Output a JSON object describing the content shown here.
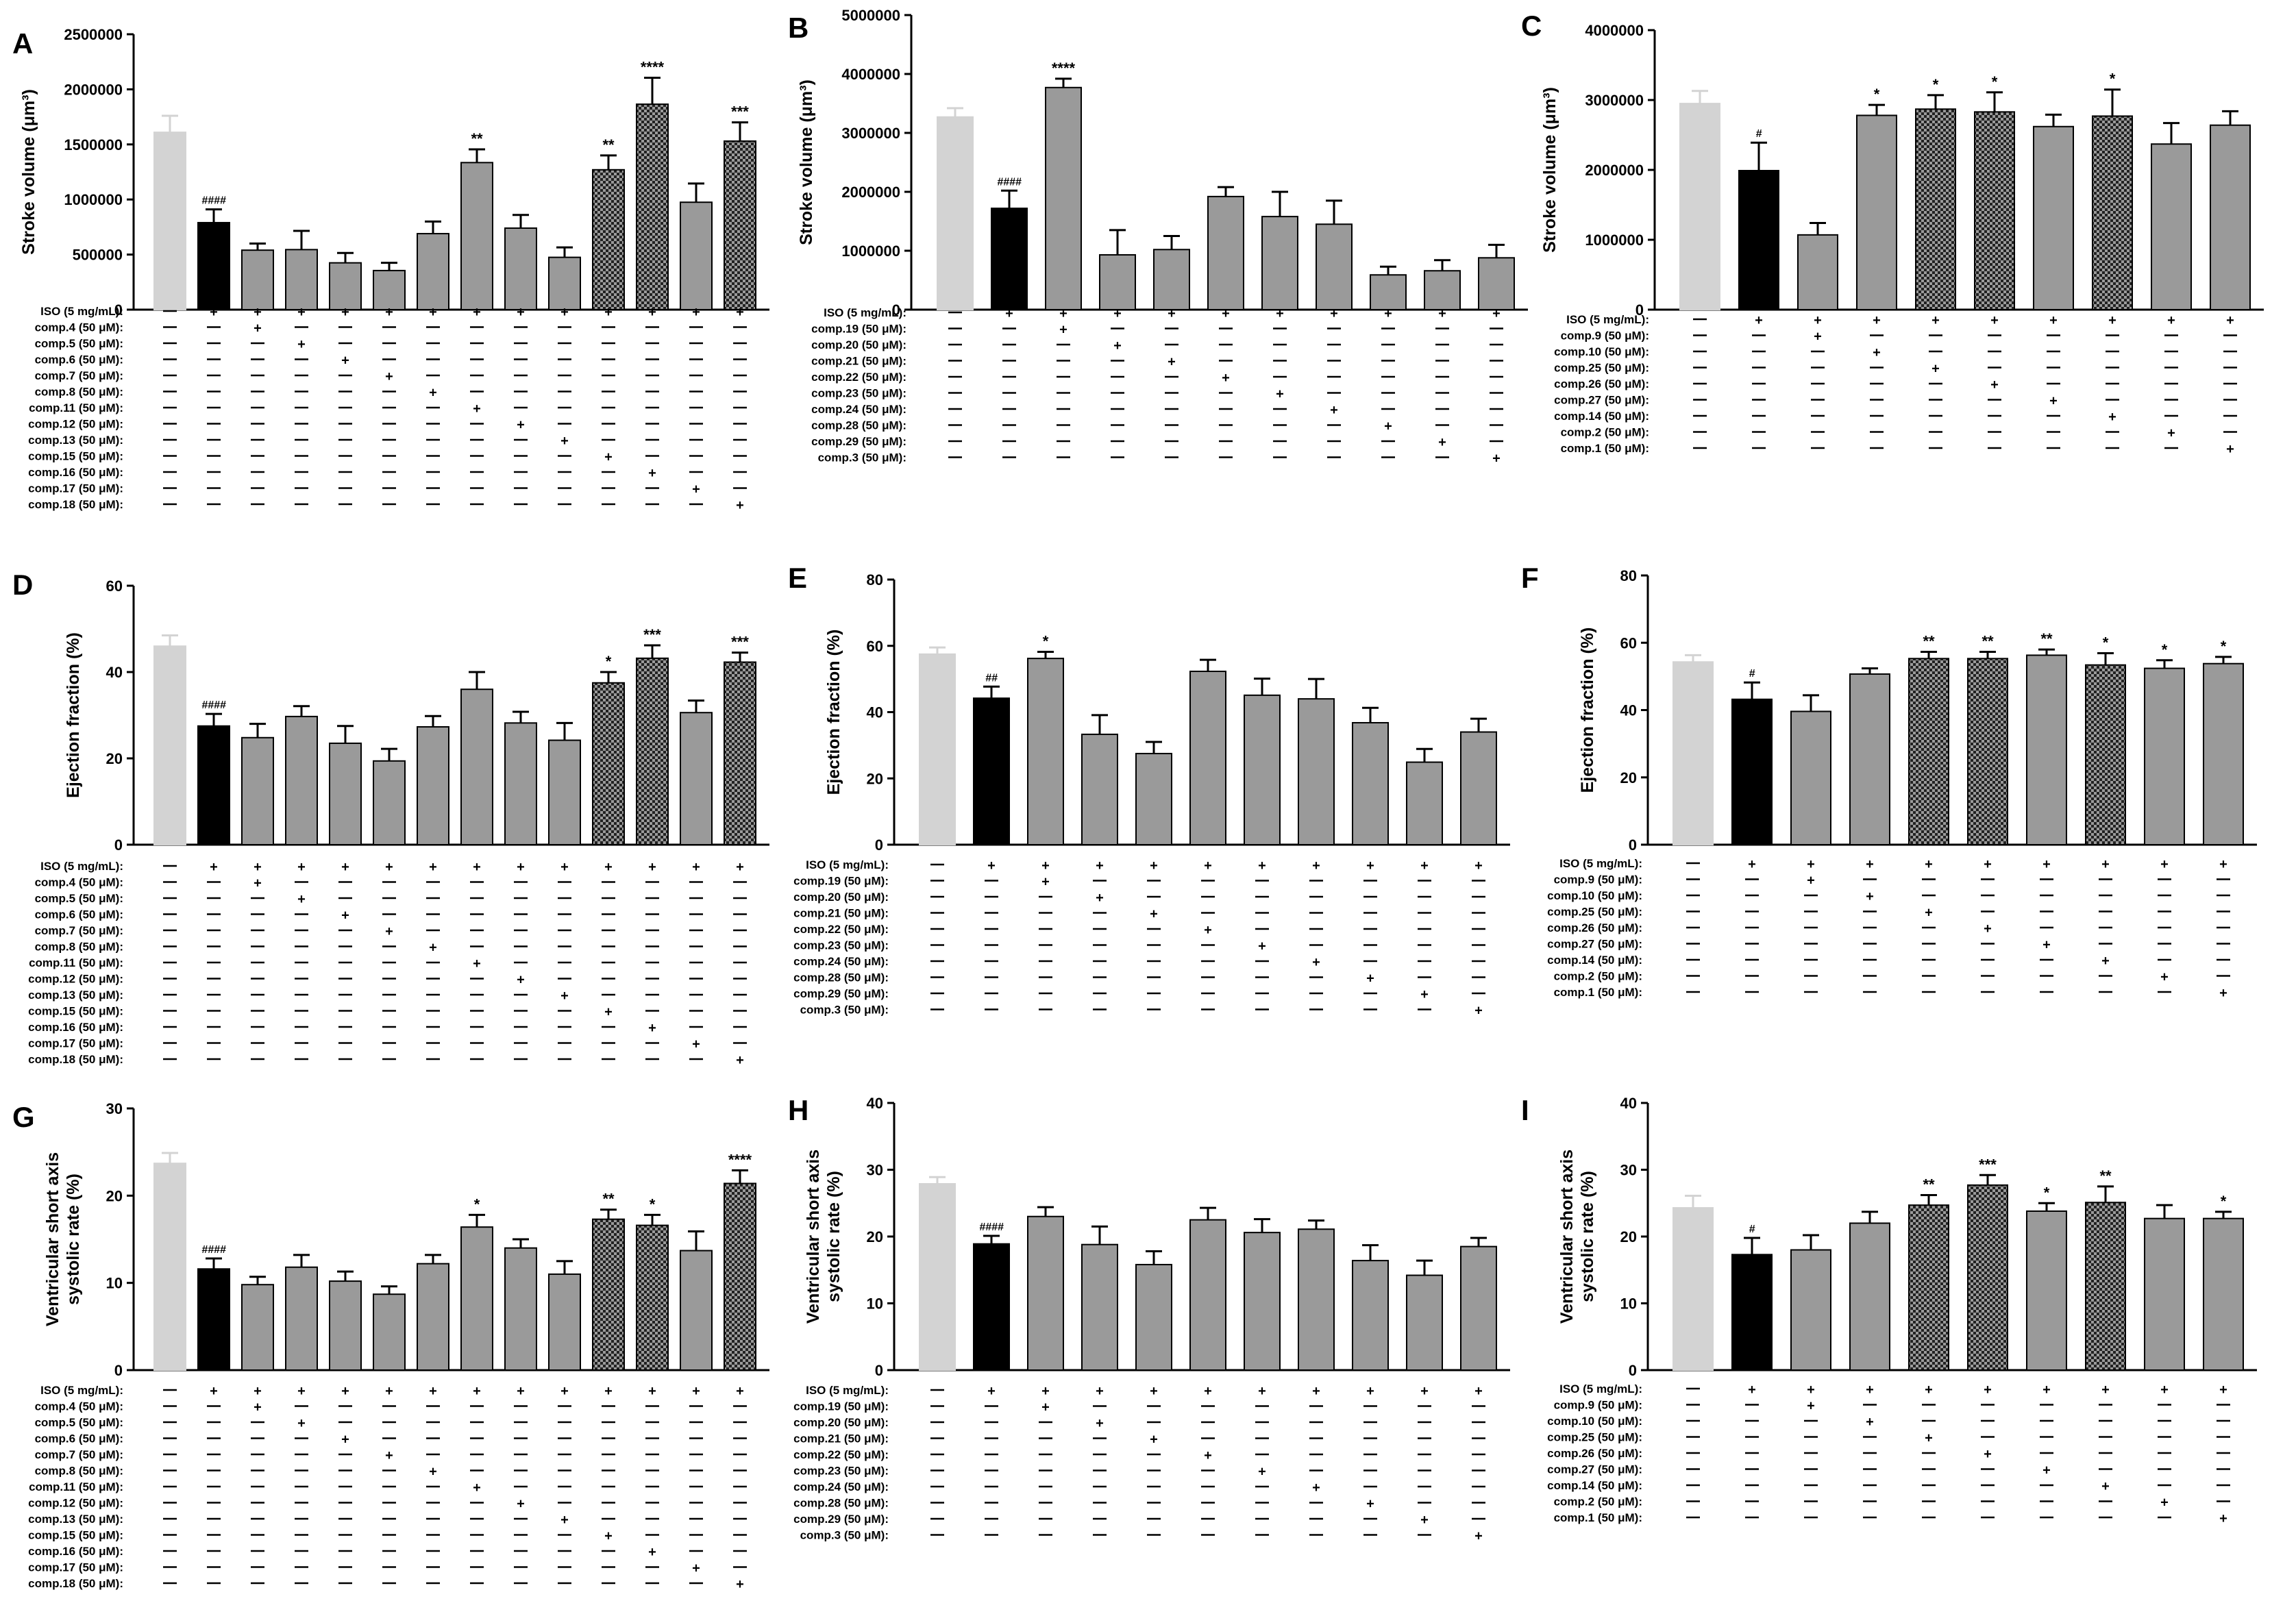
{
  "conditions": {
    "rowA": [
      "ISO (5 mg/mL):",
      "comp.4 (50 μM):",
      "comp.5 (50 μM):",
      "comp.6 (50 μM):",
      "comp.7 (50 μM):",
      "comp.8 (50 μM):",
      "comp.11 (50 μM):",
      "comp.12 (50 μM):",
      "comp.13 (50 μM):",
      "comp.15 (50 μM):",
      "comp.16 (50 μM):",
      "comp.17 (50 μM):",
      "comp.18 (50 μM):"
    ],
    "rowB": [
      "ISO (5 mg/mL):",
      "comp.19 (50 μM):",
      "comp.20 (50 μM):",
      "comp.21 (50 μM):",
      "comp.22 (50 μM):",
      "comp.23 (50 μM):",
      "comp.24 (50 μM):",
      "comp.28 (50 μM):",
      "comp.29 (50 μM):",
      "comp.3 (50 μM):"
    ],
    "rowC": [
      "ISO (5 mg/mL):",
      "comp.9 (50 μM):",
      "comp.10 (50 μM):",
      "comp.25 (50 μM):",
      "comp.26 (50 μM):",
      "comp.27 (50 μM):",
      "comp.14 (50 μM):",
      "comp.2 (50 μM):",
      "comp.1 (50 μM):"
    ]
  },
  "chart_data": [
    {
      "panel": "A",
      "type": "bar",
      "ylabel": "Stroke volume (μm³)",
      "ylim": [
        0,
        2500000
      ],
      "yticks": [
        "0",
        "500000",
        "1000000",
        "1500000",
        "2000000",
        "2500000"
      ],
      "values": [
        1610000,
        790000,
        540000,
        545000,
        425000,
        355000,
        690000,
        1335000,
        740000,
        475000,
        1270000,
        1865000,
        975000,
        1530000
      ],
      "errors": [
        150000,
        120000,
        60000,
        170000,
        90000,
        70000,
        110000,
        120000,
        120000,
        90000,
        130000,
        240000,
        170000,
        170000
      ],
      "sig": [
        "",
        "####",
        "",
        "",
        "",
        "",
        "",
        "**",
        "",
        "",
        "**",
        "****",
        "",
        "***"
      ]
    },
    {
      "panel": "B",
      "type": "bar",
      "ylabel": "Stroke volume (μm³)",
      "ylim": [
        0,
        5000000
      ],
      "yticks": [
        "0",
        "1000000",
        "2000000",
        "3000000",
        "4000000",
        "5000000"
      ],
      "values": [
        3270000,
        1720000,
        3770000,
        930000,
        1020000,
        1920000,
        1580000,
        1450000,
        590000,
        660000,
        880000
      ],
      "errors": [
        150000,
        300000,
        150000,
        420000,
        230000,
        160000,
        420000,
        400000,
        140000,
        180000,
        220000
      ],
      "sig": [
        "",
        "####",
        "****",
        "",
        "",
        "",
        "",
        "",
        "",
        "",
        ""
      ]
    },
    {
      "panel": "C",
      "type": "bar",
      "ylabel": "Stroke volume (μm³)",
      "ylim": [
        0,
        4000000
      ],
      "yticks": [
        "0",
        "1000000",
        "2000000",
        "3000000",
        "4000000"
      ],
      "values": [
        2950000,
        1990000,
        1070000,
        2780000,
        2870000,
        2830000,
        2620000,
        2770000,
        2370000,
        2640000
      ],
      "errors": [
        180000,
        400000,
        170000,
        150000,
        200000,
        280000,
        170000,
        380000,
        300000,
        200000
      ],
      "sig": [
        "",
        "#",
        "",
        "*",
        "*",
        "*",
        "",
        "*",
        "",
        ""
      ]
    },
    {
      "panel": "D",
      "type": "bar",
      "ylabel": "Ejection fraction (%)",
      "ylim": [
        0,
        60
      ],
      "yticks": [
        "0",
        "20",
        "40",
        "60"
      ],
      "values": [
        46,
        27.5,
        24.8,
        29.7,
        23.5,
        19.4,
        27.3,
        36,
        28.2,
        24.2,
        37.5,
        43.2,
        30.6,
        42.3
      ],
      "errors": [
        2.5,
        2.8,
        3.2,
        2.4,
        4.0,
        2.8,
        2.5,
        4.0,
        2.6,
        4.0,
        2.5,
        3.0,
        2.8,
        2.2
      ],
      "sig": [
        "",
        "####",
        "",
        "",
        "",
        "",
        "",
        "",
        "",
        "",
        "*",
        "***",
        "",
        "***"
      ]
    },
    {
      "panel": "E",
      "type": "bar",
      "ylabel": "Ejection fraction (%)",
      "ylim": [
        0,
        80
      ],
      "yticks": [
        "0",
        "20",
        "40",
        "60",
        "80"
      ],
      "values": [
        57.5,
        44.2,
        56.2,
        33.3,
        27.5,
        52.3,
        45.1,
        44.0,
        36.8,
        24.9,
        34.0
      ],
      "errors": [
        2.0,
        3.5,
        2.0,
        5.8,
        3.5,
        3.5,
        5.0,
        6.0,
        4.5,
        4.0,
        4.0
      ],
      "sig": [
        "",
        "##",
        "*",
        "",
        "",
        "",
        "",
        "",
        "",
        "",
        ""
      ]
    },
    {
      "panel": "F",
      "type": "bar",
      "ylabel": "Ejection fraction (%)",
      "ylim": [
        0,
        80
      ],
      "yticks": [
        "0",
        "20",
        "40",
        "60",
        "80"
      ],
      "values": [
        54.3,
        43.2,
        39.6,
        50.7,
        55.3,
        55.3,
        56.3,
        53.4,
        52.4,
        53.8
      ],
      "errors": [
        2.0,
        5.0,
        4.8,
        1.7,
        2.0,
        2.0,
        1.7,
        3.5,
        2.4,
        2.0
      ],
      "sig": [
        "",
        "#",
        "",
        "",
        "**",
        "**",
        "**",
        "*",
        "*",
        "*"
      ]
    },
    {
      "panel": "G",
      "type": "bar",
      "ylabel": "Ventricular short axis systolic rate (%)",
      "ylim": [
        0,
        30
      ],
      "yticks": [
        "0",
        "10",
        "20",
        "30"
      ],
      "values": [
        23.7,
        11.6,
        9.8,
        11.8,
        10.2,
        8.7,
        12.2,
        16.4,
        14.0,
        11.0,
        17.3,
        16.6,
        13.7,
        21.4
      ],
      "errors": [
        1.2,
        1.2,
        0.9,
        1.4,
        1.1,
        0.9,
        1.0,
        1.4,
        1.0,
        1.5,
        1.1,
        1.2,
        2.2,
        1.5
      ],
      "sig": [
        "",
        "####",
        "",
        "",
        "",
        "",
        "",
        "*",
        "",
        "",
        "**",
        "*",
        "",
        "****"
      ]
    },
    {
      "panel": "H",
      "type": "bar",
      "ylabel": "Ventricular short axis systolic rate (%)",
      "ylim": [
        0,
        40
      ],
      "yticks": [
        "0",
        "10",
        "20",
        "30",
        "40"
      ],
      "values": [
        27.9,
        18.9,
        23.0,
        18.8,
        15.8,
        22.5,
        20.6,
        21.1,
        16.4,
        14.2,
        18.5
      ],
      "errors": [
        1.0,
        1.2,
        1.4,
        2.7,
        2.0,
        1.8,
        2.0,
        1.3,
        2.3,
        2.2,
        1.3
      ],
      "sig": [
        "",
        "####",
        "",
        "",
        "",
        "",
        "",
        "",
        "",
        "",
        ""
      ]
    },
    {
      "panel": "I",
      "type": "bar",
      "ylabel": "Ventricular short axis systolic rate (%)",
      "ylim": [
        0,
        40
      ],
      "yticks": [
        "0",
        "10",
        "20",
        "30",
        "40"
      ],
      "values": [
        24.3,
        17.3,
        18.0,
        22.0,
        24.7,
        27.7,
        23.8,
        25.1,
        22.7,
        22.7
      ],
      "errors": [
        1.8,
        2.5,
        2.2,
        1.7,
        1.5,
        1.5,
        1.2,
        2.4,
        2.0,
        1.0
      ],
      "sig": [
        "",
        "#",
        "",
        "",
        "**",
        "***",
        "*",
        "**",
        "",
        "*"
      ]
    }
  ]
}
